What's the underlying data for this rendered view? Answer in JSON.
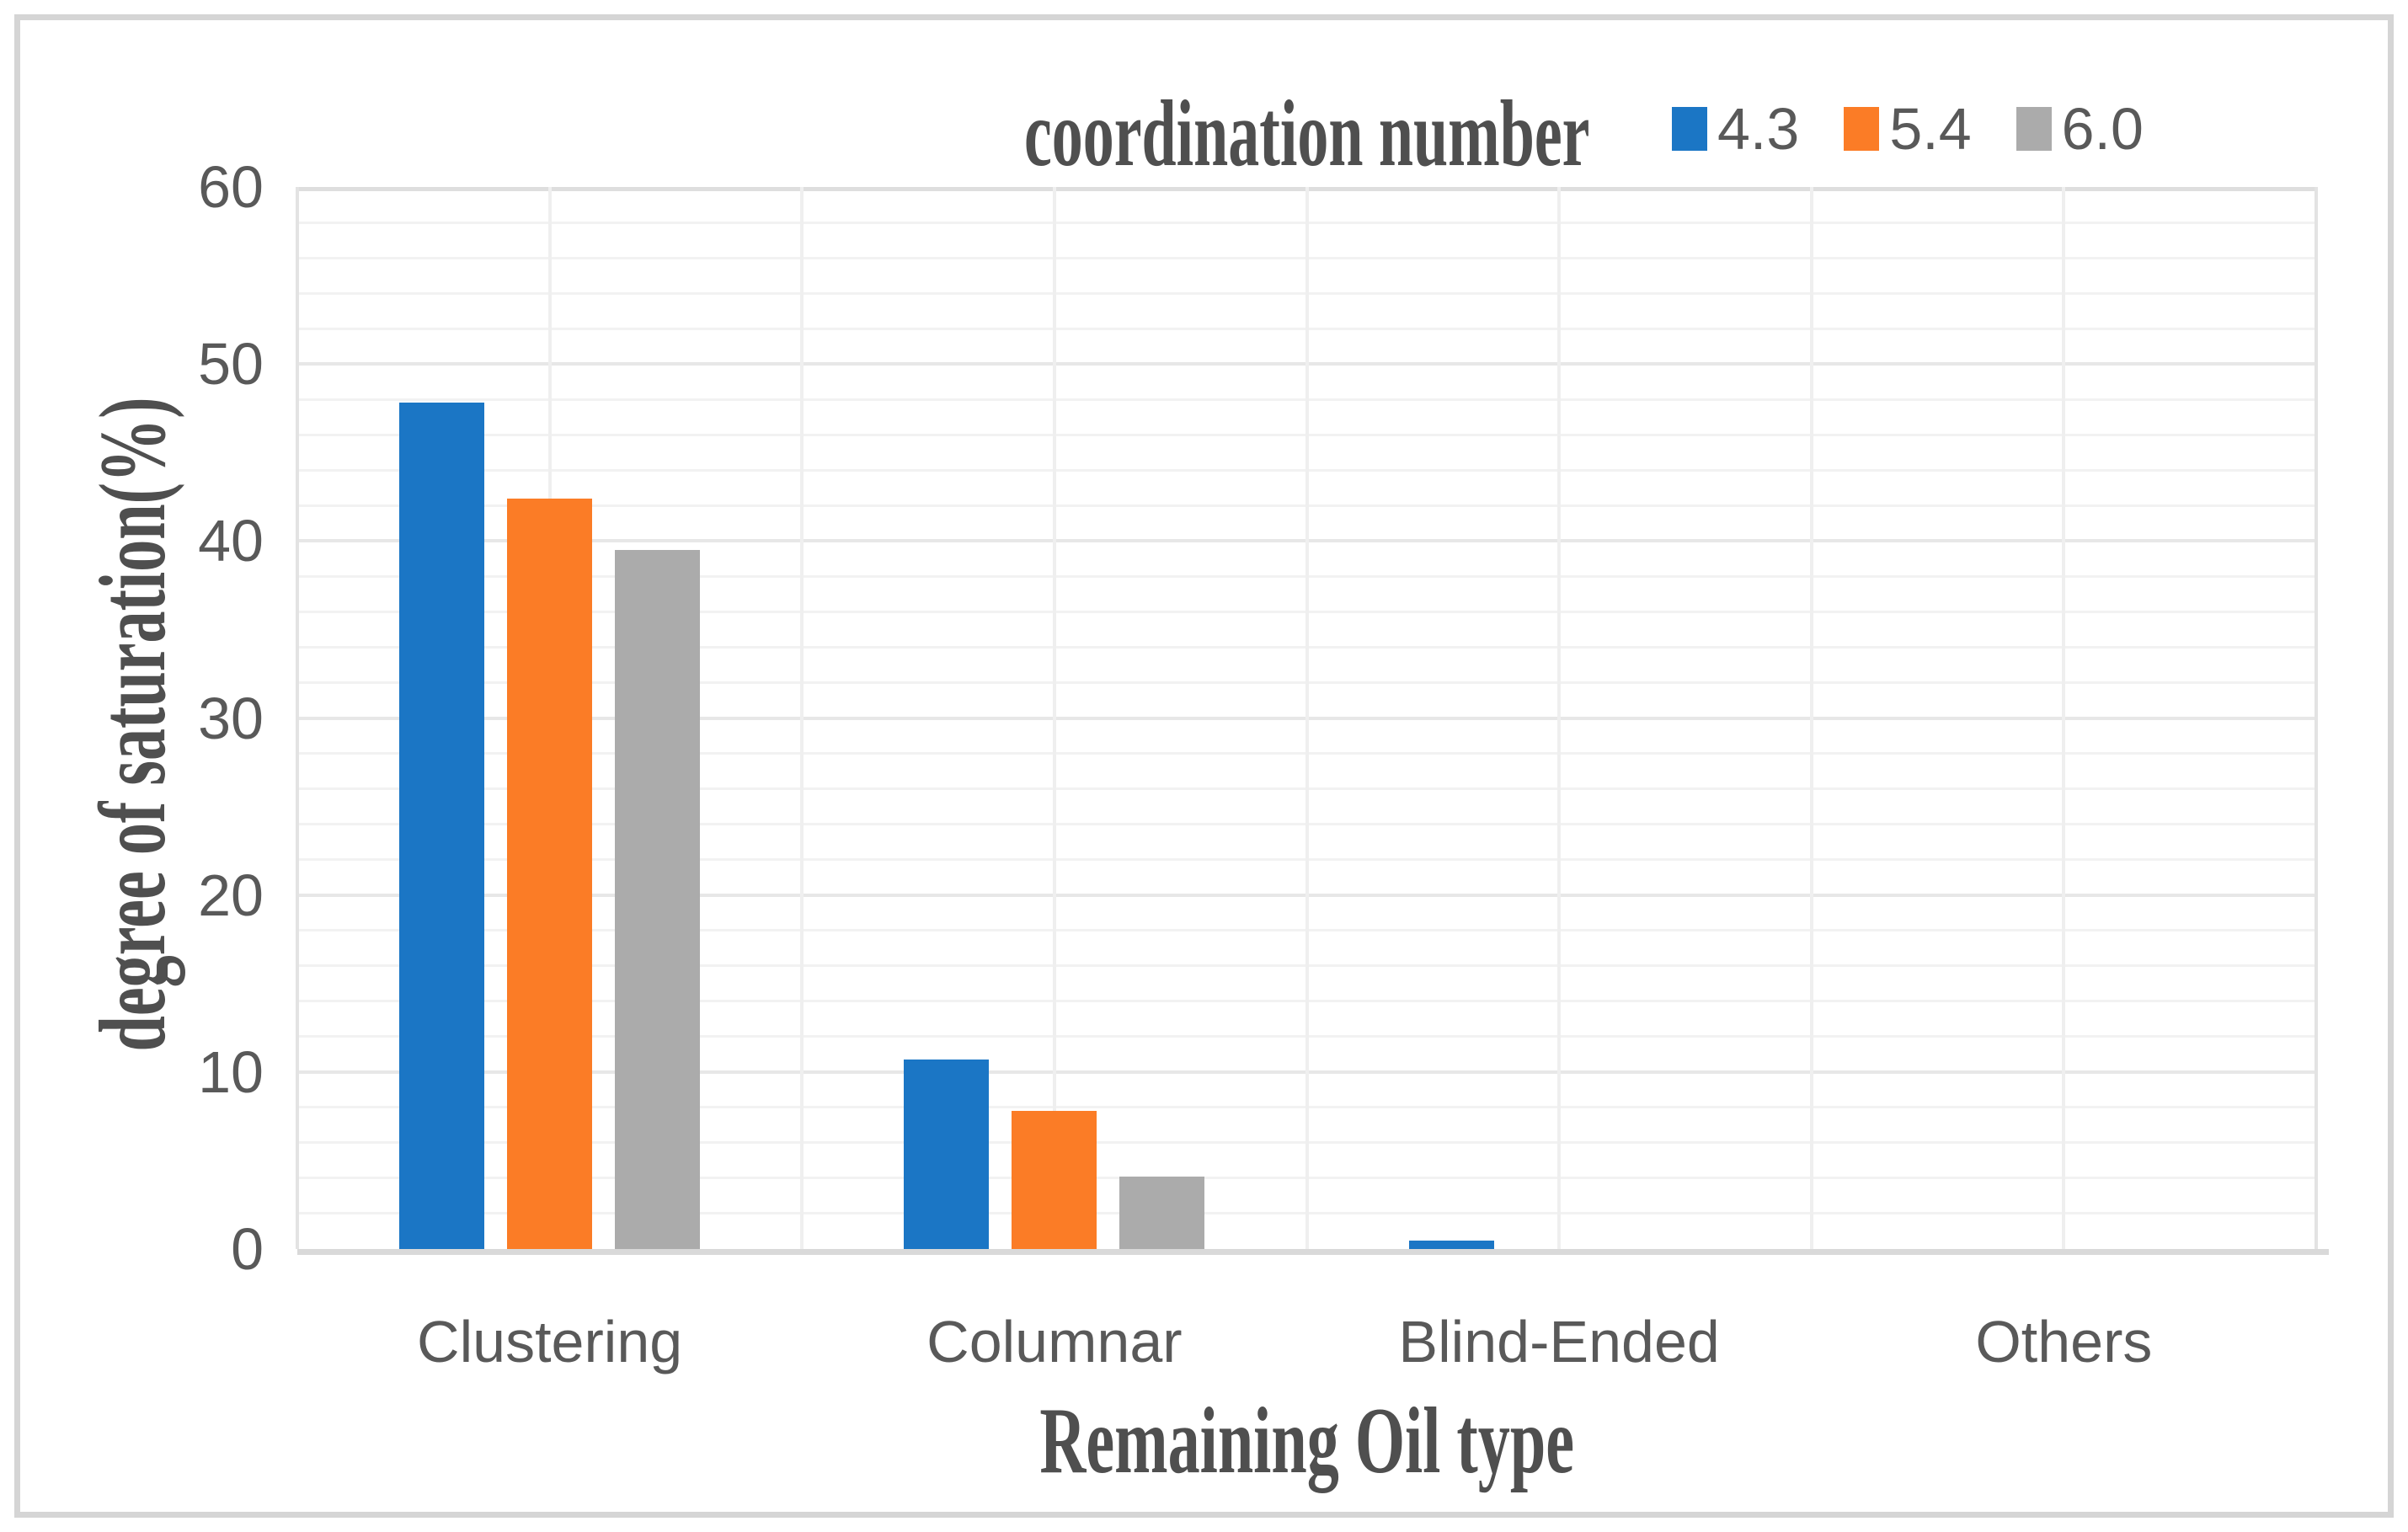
{
  "chart_data": {
    "type": "bar",
    "title": "coordination number",
    "xlabel": "Remaining Oil type",
    "ylabel": "degree of saturation(%)",
    "categories": [
      "Clustering",
      "Columnar",
      "Blind-Ended",
      "Others"
    ],
    "series": [
      {
        "name": "4.3",
        "color": "#1b76c5",
        "values": [
          47.8,
          10.7,
          0.5,
          0
        ]
      },
      {
        "name": "5.4",
        "color": "#fb7c26",
        "values": [
          42.4,
          7.8,
          0,
          0
        ]
      },
      {
        "name": "6.0",
        "color": "#ababab",
        "values": [
          39.5,
          4.1,
          0,
          0
        ]
      }
    ],
    "ylim": [
      0,
      60
    ],
    "y_ticks": [
      0,
      10,
      20,
      30,
      40,
      50,
      60
    ],
    "y_major_step": 10,
    "y_minor_step": 2,
    "x_gridline_divisions": 8,
    "grid": true,
    "legend_position": "top-right",
    "colors": {
      "label_gray": "#595959",
      "title_gray": "#4f4f4f",
      "axis_line": "#d9d9d9",
      "major_grid": "#e7e7e7",
      "minor_grid": "#f2f2f2",
      "figure_border": "#d5d5d5"
    }
  }
}
